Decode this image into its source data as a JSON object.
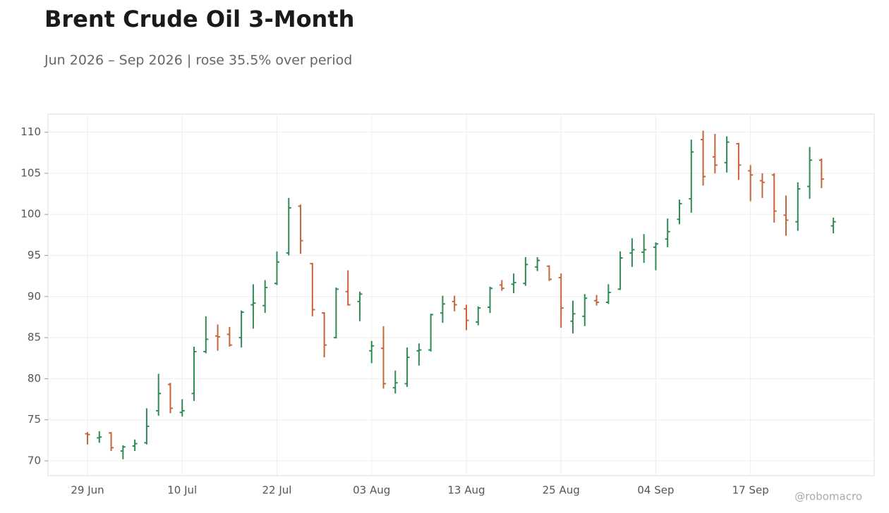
{
  "chart_data": {
    "type": "ohlc",
    "title": "Brent Crude Oil 3-Month",
    "subtitle": "Jun 2026 – Sep 2026 | rose 35.5% over period",
    "watermark": "@robomacro",
    "categories": [
      "29 Jun",
      null,
      null,
      null,
      null,
      null,
      null,
      null,
      "10 Jul",
      null,
      null,
      null,
      null,
      null,
      null,
      null,
      "22 Jul",
      null,
      null,
      null,
      null,
      null,
      null,
      null,
      "03 Aug",
      null,
      null,
      null,
      null,
      null,
      null,
      null,
      "13 Aug",
      null,
      null,
      null,
      null,
      null,
      null,
      null,
      "25 Aug",
      null,
      null,
      null,
      null,
      null,
      null,
      null,
      "04 Sep",
      null,
      null,
      null,
      null,
      null,
      null,
      null,
      "17 Sep",
      null,
      null,
      null,
      null,
      null,
      null,
      null
    ],
    "open": [
      73.3,
      72.8,
      73.4,
      71.2,
      71.8,
      72.2,
      76.1,
      79.3,
      75.9,
      78.2,
      83.3,
      85.2,
      85.4,
      85.0,
      89.0,
      88.9,
      91.6,
      95.3,
      101.0,
      94.0,
      88.0,
      85.0,
      90.6,
      89.4,
      83.4,
      83.7,
      78.9,
      79.4,
      83.4,
      83.5,
      88.0,
      89.4,
      88.5,
      86.9,
      88.7,
      91.4,
      91.5,
      91.6,
      93.6,
      93.7,
      92.3,
      87.0,
      87.6,
      89.5,
      89.3,
      90.9,
      95.3,
      95.4,
      96.0,
      97.0,
      99.4,
      101.9,
      109.1,
      107.0,
      106.3,
      108.6,
      105.3,
      104.1,
      104.8,
      99.9,
      99.1,
      103.4,
      106.6,
      98.6
    ],
    "high": [
      73.5,
      73.6,
      73.5,
      71.9,
      72.6,
      76.4,
      80.6,
      79.5,
      77.5,
      83.9,
      87.6,
      86.6,
      86.3,
      88.3,
      91.5,
      92.0,
      95.5,
      102.0,
      101.2,
      94.1,
      88.1,
      91.1,
      93.2,
      90.6,
      84.6,
      86.4,
      81.0,
      83.8,
      84.3,
      87.9,
      90.1,
      90.1,
      89.0,
      88.8,
      91.2,
      92.0,
      92.8,
      94.8,
      94.8,
      93.8,
      92.8,
      89.5,
      90.3,
      90.2,
      91.5,
      95.5,
      97.1,
      97.6,
      96.6,
      99.5,
      101.8,
      109.1,
      110.2,
      109.8,
      109.5,
      108.7,
      106.0,
      105.0,
      105.0,
      102.3,
      103.9,
      108.2,
      106.8,
      99.6
    ],
    "low": [
      72.0,
      72.2,
      71.2,
      70.2,
      71.2,
      72.0,
      75.5,
      75.8,
      75.4,
      77.3,
      83.1,
      83.4,
      83.9,
      83.8,
      86.1,
      88.0,
      91.4,
      95.0,
      95.2,
      87.6,
      82.6,
      84.9,
      88.9,
      87.0,
      81.9,
      78.8,
      78.2,
      79.0,
      81.6,
      83.3,
      86.8,
      88.2,
      85.9,
      86.5,
      88.0,
      90.7,
      90.4,
      91.3,
      93.1,
      91.9,
      86.2,
      85.5,
      86.4,
      88.9,
      89.1,
      90.8,
      93.6,
      94.1,
      93.2,
      96.0,
      98.8,
      100.2,
      103.5,
      105.0,
      105.1,
      104.2,
      101.6,
      102.0,
      99.0,
      97.4,
      98.0,
      101.9,
      103.2,
      97.7
    ],
    "close": [
      73.2,
      72.9,
      71.6,
      71.7,
      72.1,
      74.2,
      78.2,
      76.4,
      76.1,
      83.3,
      84.8,
      85.1,
      84.1,
      88.1,
      89.2,
      91.1,
      94.2,
      100.8,
      96.8,
      88.4,
      84.1,
      90.9,
      89.0,
      90.3,
      84.0,
      79.4,
      79.5,
      82.6,
      83.5,
      87.8,
      89.1,
      89.0,
      87.1,
      88.6,
      91.0,
      91.0,
      91.7,
      93.9,
      94.4,
      92.1,
      88.6,
      87.9,
      89.8,
      89.3,
      90.5,
      94.7,
      95.7,
      95.7,
      96.4,
      97.9,
      101.3,
      107.6,
      104.6,
      106.0,
      108.8,
      106.0,
      104.8,
      103.9,
      100.4,
      99.3,
      103.1,
      106.6,
      104.3,
      99.1
    ],
    "up_color": "#2e8b57",
    "down_color": "#c8643b",
    "ylim": [
      68.2,
      112.2
    ],
    "yticks": [
      70,
      75,
      80,
      85,
      90,
      95,
      100,
      105,
      110
    ],
    "grid": true
  }
}
